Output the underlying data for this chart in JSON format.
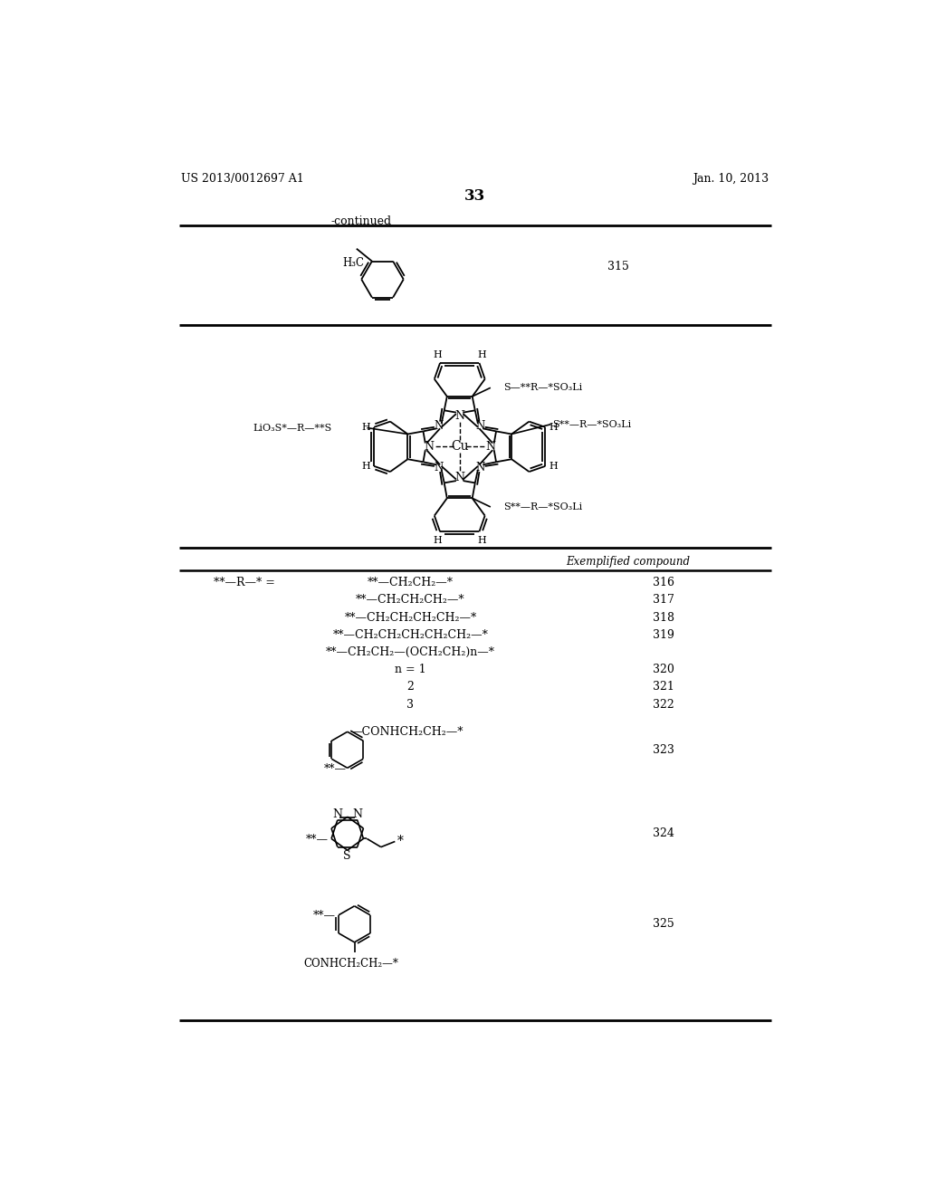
{
  "page_number": "33",
  "patent_left": "US 2013/0012697 A1",
  "patent_right": "Jan. 10, 2013",
  "continued_label": "-continued",
  "bg_color": "#ffffff",
  "text_color": "#000000",
  "table_header": "Exemplified compound",
  "rr_label": "**—R—* =",
  "table_rows": [
    {
      "formula": "**—CH₂CH₂—*",
      "number": "316"
    },
    {
      "formula": "**—CH₂CH₂CH₂—*",
      "number": "317"
    },
    {
      "formula": "**—CH₂CH₂CH₂CH₂—*",
      "number": "318"
    },
    {
      "formula": "**—CH₂CH₂CH₂CH₂CH₂—*",
      "number": "319"
    },
    {
      "formula": "**—CH₂CH₂—(OCH₂CH₂)n—*",
      "number": ""
    },
    {
      "formula": "n = 1",
      "number": "320",
      "indent": true
    },
    {
      "formula": "2",
      "number": "321",
      "indent": true
    },
    {
      "formula": "3",
      "number": "322",
      "indent": true
    }
  ],
  "compound_323_number": "323",
  "compound_324_number": "324",
  "compound_325_number": "325"
}
